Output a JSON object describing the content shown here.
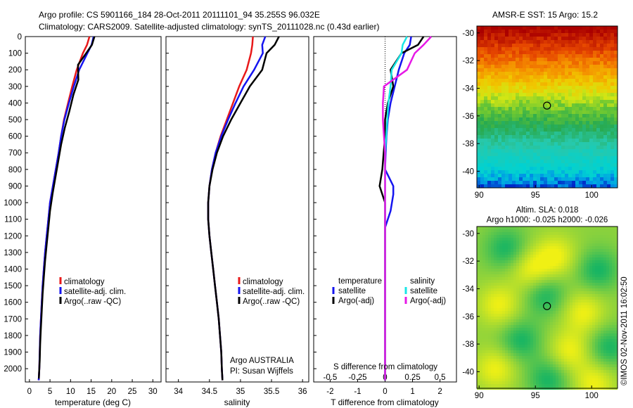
{
  "header": {
    "line1": "Argo profile: CS 5901166_184 28-Oct-2011 20111101_94 35.255S 96.032E",
    "line2": "Climatology: CARS2009. Satellite-adjusted climatology: synTS_20111028.nc (0.43d earlier)"
  },
  "colors": {
    "climatology": "#e8191a",
    "satellite": "#1414f0",
    "argo": "#000000",
    "satellite_s": "#19e6e6",
    "argo_s": "#e619e6"
  },
  "legend": {
    "climatology": "climatology",
    "satellite": "satellite-adj. clim.",
    "argo": "Argo(..raw -QC)"
  },
  "diff_legend": {
    "temperature": "temperature",
    "salinity": "salinity",
    "satellite": "satellite",
    "argo": "Argo(-adj)"
  },
  "credit": {
    "line1": "Argo AUSTRALIA",
    "line2": "PI: Susan Wijffels"
  },
  "map_top": {
    "title": "AMSR-E SST: 15 Argo: 15.2"
  },
  "map_bottom": {
    "title1": "Altim. SLA: 0.018",
    "title2": "Argo h1000: -0.025 h2000: -0.026"
  },
  "imos_label": "©IMOS 02-Nov-2011 16:02:50",
  "chart_data": [
    {
      "type": "line",
      "xlabel": "temperature (deg C)",
      "ylabel": "",
      "xlim": [
        -1,
        32
      ],
      "ylim": [
        2080,
        0
      ],
      "xticks": [
        "0",
        "5",
        "10",
        "15",
        "20",
        "25",
        "30"
      ],
      "yticks": [
        "0",
        "100",
        "200",
        "300",
        "400",
        "500",
        "600",
        "700",
        "800",
        "900",
        "1000",
        "1100",
        "1200",
        "1300",
        "1400",
        "1500",
        "1600",
        "1700",
        "1800",
        "1900",
        "2000"
      ],
      "series": [
        {
          "name": "climatology",
          "x": [
            14.6,
            14.0,
            13.0,
            11.5,
            10.4,
            9.4,
            8.4,
            7.7,
            7.1,
            6.4,
            5.7,
            5.0,
            4.6,
            4.2,
            3.8,
            3.5,
            3.2,
            3.0,
            2.8,
            2.6,
            2.5,
            2.4,
            2.3,
            2.25
          ],
          "y": [
            0,
            50,
            100,
            200,
            300,
            400,
            500,
            600,
            700,
            800,
            900,
            1000,
            1100,
            1200,
            1300,
            1400,
            1500,
            1600,
            1700,
            1800,
            1900,
            2000,
            2050,
            2070
          ]
        },
        {
          "name": "satellite-adj. clim.",
          "x": [
            15.6,
            15.1,
            14.1,
            12.1,
            10.8,
            9.6,
            8.5,
            7.7,
            7.1,
            6.4,
            5.7,
            5.0,
            4.6,
            4.2,
            3.8,
            3.5,
            3.2,
            3.0,
            2.8,
            2.6,
            2.5,
            2.4,
            2.3,
            2.25
          ],
          "y": [
            0,
            50,
            100,
            200,
            300,
            400,
            500,
            600,
            700,
            800,
            900,
            1000,
            1100,
            1200,
            1300,
            1400,
            1500,
            1600,
            1700,
            1800,
            1900,
            2000,
            2050,
            2070
          ]
        },
        {
          "name": "Argo(..raw -QC)",
          "x": [
            15.8,
            15.2,
            13.8,
            11.8,
            11.9,
            10.7,
            9.7,
            8.6,
            7.7,
            7.0,
            6.3,
            5.6,
            5.0,
            4.6,
            4.2,
            3.8,
            3.5,
            3.2,
            3.0,
            2.8,
            2.6,
            2.5,
            2.4,
            2.3,
            2.3
          ],
          "y": [
            0,
            50,
            100,
            170,
            260,
            350,
            450,
            550,
            650,
            750,
            850,
            950,
            1050,
            1150,
            1250,
            1350,
            1450,
            1550,
            1650,
            1750,
            1850,
            1950,
            2000,
            2050,
            2060
          ]
        }
      ]
    },
    {
      "type": "line",
      "xlabel": "salinity",
      "ylabel": "",
      "xlim": [
        33.8,
        36.1
      ],
      "ylim": [
        2080,
        0
      ],
      "xticks": [
        "34",
        "34.5",
        "35",
        "35.5",
        "36"
      ],
      "series": [
        {
          "name": "climatology",
          "x": [
            35.2,
            35.19,
            35.17,
            35.1,
            34.98,
            34.88,
            34.78,
            34.68,
            34.6,
            34.54,
            34.5,
            34.48,
            34.48,
            34.5,
            34.53,
            34.56,
            34.59,
            34.62,
            34.65,
            34.67,
            34.69,
            34.7,
            34.71
          ],
          "y": [
            0,
            50,
            100,
            200,
            300,
            400,
            500,
            600,
            700,
            800,
            900,
            1000,
            1100,
            1200,
            1300,
            1400,
            1500,
            1600,
            1700,
            1800,
            1900,
            2000,
            2070
          ]
        },
        {
          "name": "satellite-adj. clim.",
          "x": [
            35.4,
            35.35,
            35.36,
            35.22,
            35.05,
            34.92,
            34.8,
            34.69,
            34.6,
            34.54,
            34.5,
            34.48,
            34.48,
            34.5,
            34.53,
            34.56,
            34.59,
            34.62,
            34.65,
            34.67,
            34.69,
            34.7,
            34.71
          ],
          "y": [
            0,
            50,
            100,
            200,
            300,
            400,
            500,
            600,
            700,
            800,
            900,
            1000,
            1100,
            1200,
            1300,
            1400,
            1500,
            1600,
            1700,
            1800,
            1900,
            2000,
            2070
          ]
        },
        {
          "name": "Argo(..raw -QC)",
          "x": [
            35.62,
            35.55,
            35.42,
            35.35,
            35.15,
            35.0,
            34.85,
            34.72,
            34.62,
            34.55,
            34.5,
            34.48,
            34.48,
            34.5,
            34.53,
            34.56,
            34.59,
            34.62,
            34.65,
            34.67,
            34.69,
            34.7,
            34.71
          ],
          "y": [
            0,
            50,
            100,
            200,
            300,
            400,
            500,
            600,
            700,
            800,
            900,
            1000,
            1100,
            1200,
            1300,
            1400,
            1500,
            1600,
            1700,
            1800,
            1900,
            2000,
            2070
          ]
        }
      ]
    },
    {
      "type": "line",
      "xlabel": "T difference from climatology",
      "title": "S difference from climatology",
      "xlim": [
        -2.6,
        2.6
      ],
      "ylim": [
        2080,
        0
      ],
      "xticks_bottom": [
        "-2",
        "-1",
        "0",
        "1",
        "2"
      ],
      "xticks_top": [
        "-0.5",
        "-0.25",
        "0",
        "0.25",
        "0.5"
      ],
      "series": [
        {
          "name": "temperature satellite",
          "axis": "T",
          "x": [
            0.95,
            0.9,
            0.7,
            0.5,
            0.35,
            0.2,
            0.1,
            0.05,
            0.02,
            0.0,
            0.3,
            0.3,
            0.2,
            0.0,
            0.0,
            0.0,
            0.0,
            0.0,
            0.0,
            0.0,
            0.0,
            0.0
          ],
          "y": [
            0,
            50,
            100,
            200,
            300,
            400,
            500,
            600,
            700,
            800,
            900,
            950,
            1050,
            1150,
            1250,
            1400,
            1550,
            1700,
            1850,
            1950,
            2020,
            2070
          ]
        },
        {
          "name": "temperature Argo(-adj)",
          "axis": "T",
          "x": [
            1.4,
            1.2,
            0.6,
            0.2,
            0.3,
            0.1,
            0.0,
            0.0,
            -0.05,
            -0.1,
            -0.2,
            0.0,
            0.0,
            0.0,
            0.0,
            0.0,
            0.0,
            0.0,
            0.0,
            0.0
          ],
          "y": [
            0,
            50,
            100,
            200,
            300,
            400,
            500,
            600,
            700,
            800,
            900,
            1000,
            1100,
            1250,
            1400,
            1550,
            1700,
            1850,
            2000,
            2070
          ]
        },
        {
          "name": "salinity satellite",
          "axis": "S",
          "x": [
            0.2,
            0.16,
            0.15,
            0.06,
            0.05,
            0.03,
            0.02,
            0.01,
            0.0,
            0.0,
            0.0,
            0.0,
            0.0,
            0.0,
            0.0
          ],
          "y": [
            0,
            50,
            100,
            200,
            300,
            400,
            500,
            600,
            700,
            900,
            1100,
            1400,
            1700,
            2000,
            2070
          ]
        },
        {
          "name": "salinity Argo(-adj)",
          "axis": "S",
          "x": [
            0.42,
            0.35,
            0.27,
            0.2,
            -0.01,
            -0.02,
            -0.02,
            -0.01,
            0.0,
            0.0,
            0.0,
            0.0,
            0.0,
            0.0
          ],
          "y": [
            0,
            50,
            100,
            200,
            300,
            400,
            500,
            600,
            700,
            900,
            1100,
            1400,
            1700,
            2070
          ]
        }
      ]
    }
  ],
  "map_axes": {
    "lat_ticks": [
      "-30",
      "-32",
      "-34",
      "-36",
      "-38",
      "-40"
    ],
    "lon_ticks": [
      "90",
      "95",
      "100"
    ]
  }
}
